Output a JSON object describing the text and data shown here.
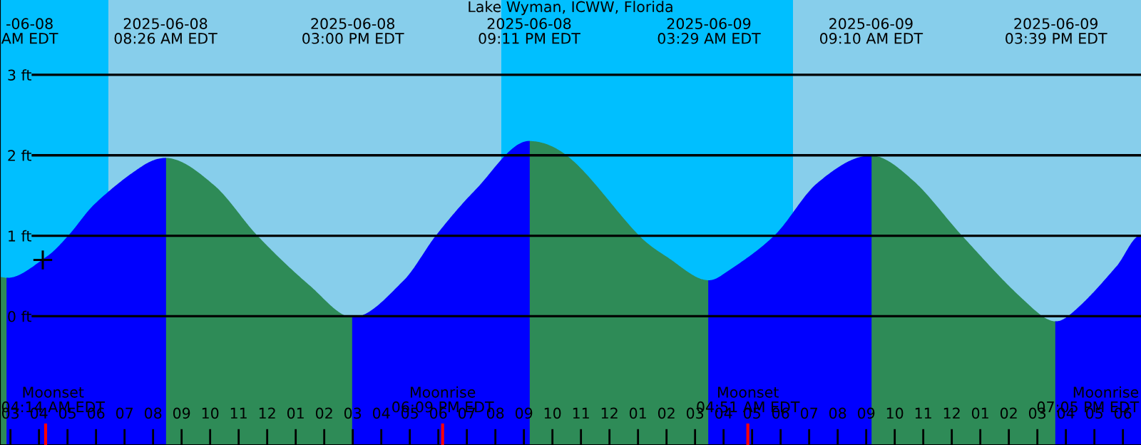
{
  "chart_data": {
    "type": "area",
    "title": "Lake Wyman, ICWW, Florida",
    "x": [
      "2025-06-08T02:38",
      "2025-06-08T02:53",
      "2025-06-08T04:18",
      "2025-06-08T05:03",
      "2025-06-08T05:58",
      "2025-06-08T07:38",
      "2025-06-08T08:26",
      "2025-06-08T10:08",
      "2025-06-08T11:38",
      "2025-06-08T13:28",
      "2025-06-08T15:00",
      "2025-06-08T16:48",
      "2025-06-08T17:56",
      "2025-06-08T19:18",
      "2025-06-08T21:11",
      "2025-06-08T22:38",
      "2025-06-09T01:01",
      "2025-06-09T01:58",
      "2025-06-09T03:29",
      "2025-06-09T03:56",
      "2025-06-09T05:48",
      "2025-06-09T07:18",
      "2025-06-09T09:10",
      "2025-06-09T10:38",
      "2025-06-09T12:20",
      "2025-06-09T14:28",
      "2025-06-09T15:39",
      "2025-06-09T16:26",
      "2025-06-09T17:48",
      "2025-06-09T18:38"
    ],
    "series": [
      {
        "color": "#2e8b57",
        "values": [
          0.48,
          0.47,
          null,
          null,
          null,
          null,
          1.96,
          1.62,
          1.0,
          0.38,
          -0.02,
          null,
          null,
          null,
          2.17,
          1.95,
          1.0,
          0.74,
          0.44,
          null,
          null,
          null,
          1.99,
          1.68,
          1.0,
          0.21,
          -0.07,
          null,
          null,
          null
        ]
      },
      {
        "color": "#0000ff",
        "values": [
          null,
          0.47,
          0.74,
          1.0,
          1.39,
          1.86,
          1.96,
          null,
          null,
          null,
          -0.02,
          0.44,
          1.0,
          1.56,
          2.17,
          null,
          null,
          null,
          0.44,
          0.5,
          1.0,
          1.65,
          1.99,
          null,
          null,
          null,
          -0.07,
          0.1,
          0.62,
          1.0
        ]
      },
      {
        "type": "scatter",
        "marker": "cross",
        "color": "#000000",
        "x": [
          "2025-06-08T04:08"
        ],
        "values": [
          0.7
        ]
      }
    ],
    "xlim": [
      "2025-06-08T02:38",
      "2025-06-09T18:38"
    ],
    "xticks": [
      {
        "value": "2025-06-08T03:00",
        "label": "03"
      },
      {
        "value": "2025-06-08T04:00",
        "label": "04"
      },
      {
        "value": "2025-06-08T05:00",
        "label": "05"
      },
      {
        "value": "2025-06-08T06:00",
        "label": "06"
      },
      {
        "value": "2025-06-08T07:00",
        "label": "07"
      },
      {
        "value": "2025-06-08T08:00",
        "label": "08"
      },
      {
        "value": "2025-06-08T09:00",
        "label": "09"
      },
      {
        "value": "2025-06-08T10:00",
        "label": "10"
      },
      {
        "value": "2025-06-08T11:00",
        "label": "11"
      },
      {
        "value": "2025-06-08T12:00",
        "label": "12"
      },
      {
        "value": "2025-06-08T13:00",
        "label": "01"
      },
      {
        "value": "2025-06-08T14:00",
        "label": "02"
      },
      {
        "value": "2025-06-08T15:00",
        "label": "03"
      },
      {
        "value": "2025-06-08T16:00",
        "label": "04"
      },
      {
        "value": "2025-06-08T17:00",
        "label": "05"
      },
      {
        "value": "2025-06-08T18:00",
        "label": "06"
      },
      {
        "value": "2025-06-08T19:00",
        "label": "07"
      },
      {
        "value": "2025-06-08T20:00",
        "label": "08"
      },
      {
        "value": "2025-06-08T21:00",
        "label": "09"
      },
      {
        "value": "2025-06-08T22:00",
        "label": "10"
      },
      {
        "value": "2025-06-08T23:00",
        "label": "11"
      },
      {
        "value": "2025-06-09T00:00",
        "label": "12"
      },
      {
        "value": "2025-06-09T01:00",
        "label": "01"
      },
      {
        "value": "2025-06-09T02:00",
        "label": "02"
      },
      {
        "value": "2025-06-09T03:00",
        "label": "03"
      },
      {
        "value": "2025-06-09T04:00",
        "label": "04"
      },
      {
        "value": "2025-06-09T05:00",
        "label": "05"
      },
      {
        "value": "2025-06-09T06:00",
        "label": "06"
      },
      {
        "value": "2025-06-09T07:00",
        "label": "07"
      },
      {
        "value": "2025-06-09T08:00",
        "label": "08"
      },
      {
        "value": "2025-06-09T09:00",
        "label": "09"
      },
      {
        "value": "2025-06-09T10:00",
        "label": "10"
      },
      {
        "value": "2025-06-09T11:00",
        "label": "11"
      },
      {
        "value": "2025-06-09T12:00",
        "label": "12"
      },
      {
        "value": "2025-06-09T13:00",
        "label": "01"
      },
      {
        "value": "2025-06-09T14:00",
        "label": "02"
      },
      {
        "value": "2025-06-09T15:00",
        "label": "03"
      },
      {
        "value": "2025-06-09T16:00",
        "label": "04"
      },
      {
        "value": "2025-06-09T17:00",
        "label": "05"
      },
      {
        "value": "2025-06-09T18:00",
        "label": "06"
      }
    ],
    "ylim": [
      -1.6,
      3.93
    ],
    "yticks": [
      {
        "value": 0,
        "label": "0 ft"
      },
      {
        "value": 1,
        "label": "1 ft"
      },
      {
        "value": 2,
        "label": "2 ft"
      },
      {
        "value": 3,
        "label": "3 ft"
      }
    ],
    "grid": "y",
    "bands": [
      {
        "axis": "x",
        "from": "2025-06-08T02:38",
        "to": "2025-06-08T06:26",
        "color": "#00bfff"
      },
      {
        "axis": "x",
        "from": "2025-06-08T06:26",
        "to": "2025-06-08T20:12",
        "color": "#87ceeb"
      },
      {
        "axis": "x",
        "from": "2025-06-08T20:12",
        "to": "2025-06-09T06:26",
        "color": "#00bfff"
      },
      {
        "axis": "x",
        "from": "2025-06-09T06:26",
        "to": "2025-06-09T18:38",
        "color": "#87ceeb"
      }
    ],
    "ref_lines": [
      {
        "axis": "x",
        "value": "2025-06-08T04:14",
        "label": "Moonset\n04:14 AM EDT",
        "color": "#ff0000"
      },
      {
        "axis": "x",
        "value": "2025-06-08T18:09",
        "label": "Moonrise\n06:09 PM EDT",
        "color": "#ff0000"
      },
      {
        "axis": "x",
        "value": "2025-06-09T04:51",
        "label": "Moonset\n04:51 AM EDT",
        "color": "#ff0000"
      }
    ],
    "annotations": [
      "-06-08\nAM EDT",
      "2025-06-08\n08:26 AM EDT",
      "2025-06-08\n03:00 PM EDT",
      "2025-06-08\n09:11 PM EDT",
      "2025-06-09\n03:29 AM EDT",
      "2025-06-09\n09:10 AM EDT",
      "2025-06-09\n03:39 PM EDT",
      "Moonrise\n07:05 PM EDT"
    ]
  }
}
